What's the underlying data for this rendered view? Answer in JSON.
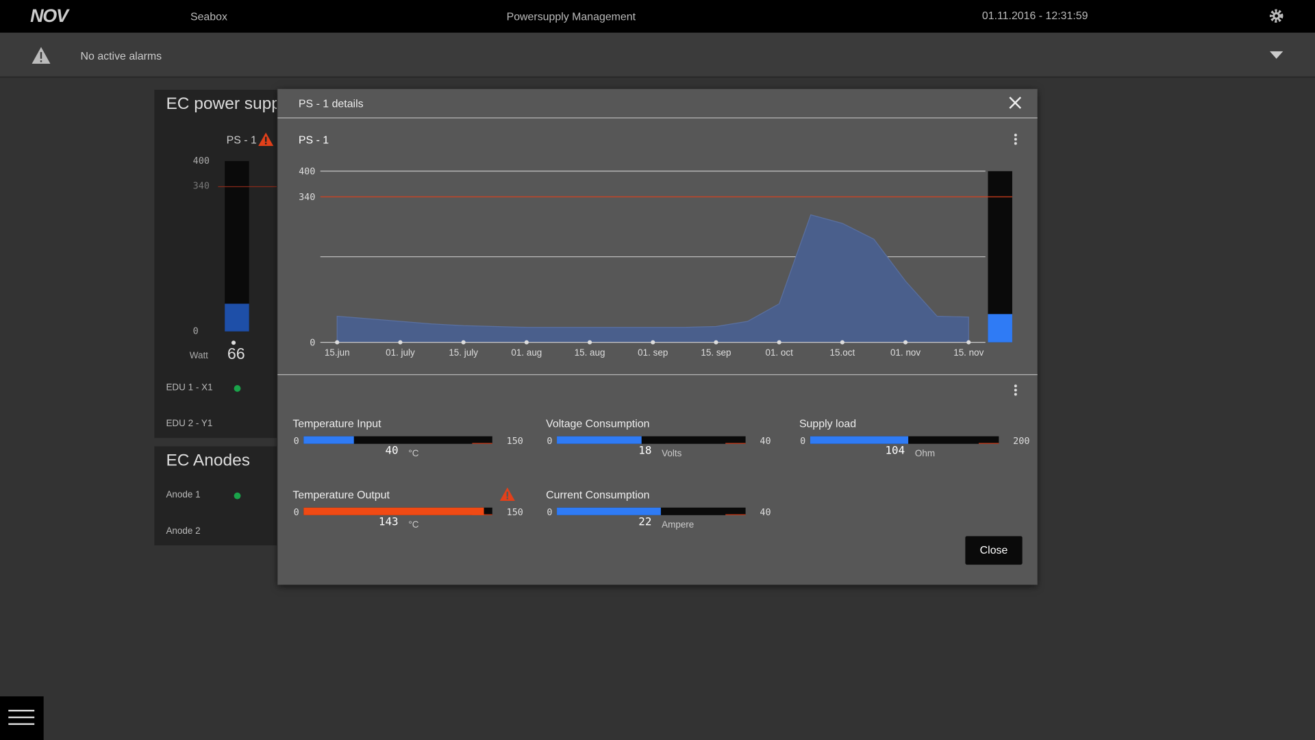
{
  "header": {
    "logo": "NOV",
    "app": "Seabox",
    "title": "Powersupply Management",
    "datetime": "01.11.2016 - 12:31:59"
  },
  "alarm_bar": {
    "message": "No active alarms"
  },
  "power_panel": {
    "title": "EC power supply",
    "device": "PS - 1",
    "ylim": [
      0,
      400
    ],
    "yticks": [
      0,
      400
    ],
    "threshold": 340,
    "value": 66,
    "unit": "Watt",
    "color": "#1e4fa8",
    "items": [
      {
        "label": "EDU 1 - X1",
        "indicator": "#1aa34a"
      },
      {
        "label": "EDU 2 - Y1",
        "indicator": null
      }
    ]
  },
  "anodes_panel": {
    "title": "EC Anodes",
    "items": [
      {
        "label": "Anode 1",
        "indicator": "#1aa34a"
      },
      {
        "label": "Anode 2",
        "indicator": null
      }
    ]
  },
  "modal": {
    "title": "PS - 1 details",
    "chart": {
      "type": "area",
      "title": "PS - 1",
      "categories": [
        "15.jun",
        null,
        "01. july",
        null,
        "15. july",
        null,
        "01. aug",
        null,
        "15. aug",
        null,
        "01. sep",
        null,
        "15. sep",
        null,
        "01. oct",
        null,
        "15.oct",
        null,
        "01. nov",
        null,
        "15. nov"
      ],
      "values": [
        61,
        55,
        49,
        43,
        39,
        37,
        35,
        35,
        35,
        35,
        35,
        35,
        37,
        49,
        90,
        298,
        278,
        241,
        143,
        61,
        59
      ],
      "color": "#4a5f8c",
      "ylim": [
        0,
        400
      ],
      "yticks": [
        0,
        400
      ],
      "grid_lines": [
        200,
        400
      ],
      "threshold": 340,
      "threshold_color": "#d9411e",
      "current_value": 66,
      "current_color": "#2f7bf5"
    },
    "gauges": [
      {
        "label": "Temperature Input",
        "min": 0,
        "max": 150,
        "value": 40,
        "unit": "°C",
        "warning": false
      },
      {
        "label": "Voltage Consumption",
        "min": 0,
        "max": 40,
        "value": 18,
        "unit": "Volts",
        "warning": false
      },
      {
        "label": "Supply load",
        "min": 0,
        "max": 200,
        "value": 104,
        "unit": "Ohm",
        "warning": false
      },
      {
        "label": "Temperature Output",
        "min": 0,
        "max": 150,
        "value": 143,
        "unit": "°C",
        "warning": true
      },
      {
        "label": "Current Consumption",
        "min": 0,
        "max": 40,
        "value": 22,
        "unit": "Ampere",
        "warning": false
      }
    ],
    "close_button": "Close"
  }
}
